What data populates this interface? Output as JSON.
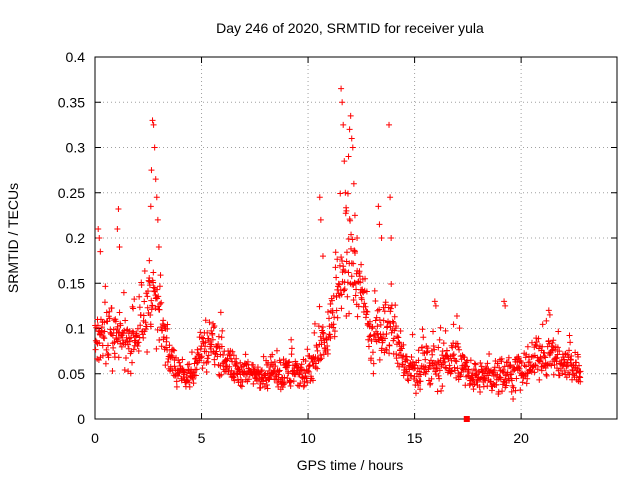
{
  "chart_data": {
    "type": "scatter",
    "title": "Day 246 of 2020, SRMTID for receiver yula",
    "xlabel": "GPS time / hours",
    "ylabel": "SRMTID / TECUs",
    "xlim": [
      0,
      24.5
    ],
    "ylim": [
      0,
      0.4
    ],
    "xticks": [
      0,
      5,
      10,
      15,
      20
    ],
    "yticks": [
      0,
      0.05,
      0.1,
      0.15,
      0.2,
      0.25,
      0.3,
      0.35,
      0.4
    ],
    "xtick_labels": [
      "0",
      "5",
      "10",
      "15",
      "20"
    ],
    "ytick_labels": [
      "0",
      "0.05",
      "0.1",
      "0.15",
      "0.2",
      "0.25",
      "0.3",
      "0.35",
      "0.4"
    ],
    "grid": true,
    "marker": "+",
    "series_color": "#ff0000",
    "gap_marker": {
      "x": 17.45,
      "y": 0
    },
    "envelope": [
      {
        "x": 0.0,
        "mean": 0.08,
        "spread": 0.04
      },
      {
        "x": 0.5,
        "mean": 0.09,
        "spread": 0.05
      },
      {
        "x": 1.0,
        "mean": 0.085,
        "spread": 0.05
      },
      {
        "x": 1.5,
        "mean": 0.08,
        "spread": 0.045
      },
      {
        "x": 2.0,
        "mean": 0.095,
        "spread": 0.05
      },
      {
        "x": 2.5,
        "mean": 0.12,
        "spread": 0.06
      },
      {
        "x": 2.8,
        "mean": 0.14,
        "spread": 0.07
      },
      {
        "x": 3.2,
        "mean": 0.09,
        "spread": 0.05
      },
      {
        "x": 3.6,
        "mean": 0.06,
        "spread": 0.03
      },
      {
        "x": 4.0,
        "mean": 0.055,
        "spread": 0.025
      },
      {
        "x": 4.5,
        "mean": 0.045,
        "spread": 0.025
      },
      {
        "x": 5.0,
        "mean": 0.08,
        "spread": 0.04
      },
      {
        "x": 5.5,
        "mean": 0.085,
        "spread": 0.04
      },
      {
        "x": 6.0,
        "mean": 0.07,
        "spread": 0.035
      },
      {
        "x": 6.5,
        "mean": 0.055,
        "spread": 0.025
      },
      {
        "x": 7.0,
        "mean": 0.05,
        "spread": 0.025
      },
      {
        "x": 8.0,
        "mean": 0.05,
        "spread": 0.025
      },
      {
        "x": 9.0,
        "mean": 0.05,
        "spread": 0.03
      },
      {
        "x": 10.0,
        "mean": 0.05,
        "spread": 0.03
      },
      {
        "x": 10.5,
        "mean": 0.07,
        "spread": 0.04
      },
      {
        "x": 11.0,
        "mean": 0.1,
        "spread": 0.05
      },
      {
        "x": 11.5,
        "mean": 0.15,
        "spread": 0.06
      },
      {
        "x": 12.0,
        "mean": 0.17,
        "spread": 0.07
      },
      {
        "x": 12.5,
        "mean": 0.14,
        "spread": 0.05
      },
      {
        "x": 13.0,
        "mean": 0.08,
        "spread": 0.04
      },
      {
        "x": 13.5,
        "mean": 0.1,
        "spread": 0.05
      },
      {
        "x": 14.0,
        "mean": 0.1,
        "spread": 0.045
      },
      {
        "x": 14.5,
        "mean": 0.06,
        "spread": 0.03
      },
      {
        "x": 15.0,
        "mean": 0.05,
        "spread": 0.03
      },
      {
        "x": 16.0,
        "mean": 0.06,
        "spread": 0.035
      },
      {
        "x": 17.0,
        "mean": 0.065,
        "spread": 0.035
      },
      {
        "x": 17.45,
        "mean": 0.05,
        "spread": 0.02
      },
      {
        "x": 18.0,
        "mean": 0.045,
        "spread": 0.025
      },
      {
        "x": 19.0,
        "mean": 0.05,
        "spread": 0.03
      },
      {
        "x": 20.0,
        "mean": 0.05,
        "spread": 0.03
      },
      {
        "x": 20.8,
        "mean": 0.07,
        "spread": 0.035
      },
      {
        "x": 21.5,
        "mean": 0.07,
        "spread": 0.035
      },
      {
        "x": 22.8,
        "mean": 0.05,
        "spread": 0.025
      }
    ],
    "peaks": [
      {
        "x": 0.15,
        "y": 0.21
      },
      {
        "x": 0.2,
        "y": 0.2
      },
      {
        "x": 0.25,
        "y": 0.185
      },
      {
        "x": 1.05,
        "y": 0.21
      },
      {
        "x": 1.1,
        "y": 0.232
      },
      {
        "x": 1.15,
        "y": 0.19
      },
      {
        "x": 2.55,
        "y": 0.175
      },
      {
        "x": 2.62,
        "y": 0.235
      },
      {
        "x": 2.65,
        "y": 0.275
      },
      {
        "x": 2.7,
        "y": 0.33
      },
      {
        "x": 2.75,
        "y": 0.325
      },
      {
        "x": 2.8,
        "y": 0.3
      },
      {
        "x": 2.85,
        "y": 0.265
      },
      {
        "x": 2.9,
        "y": 0.245
      },
      {
        "x": 2.95,
        "y": 0.22
      },
      {
        "x": 3.0,
        "y": 0.19
      },
      {
        "x": 10.55,
        "y": 0.245
      },
      {
        "x": 10.6,
        "y": 0.22
      },
      {
        "x": 10.7,
        "y": 0.18
      },
      {
        "x": 11.55,
        "y": 0.365
      },
      {
        "x": 11.6,
        "y": 0.35
      },
      {
        "x": 11.65,
        "y": 0.325
      },
      {
        "x": 11.7,
        "y": 0.285
      },
      {
        "x": 11.75,
        "y": 0.25
      },
      {
        "x": 11.8,
        "y": 0.23
      },
      {
        "x": 11.9,
        "y": 0.29
      },
      {
        "x": 11.95,
        "y": 0.32
      },
      {
        "x": 12.0,
        "y": 0.335
      },
      {
        "x": 12.05,
        "y": 0.31
      },
      {
        "x": 12.1,
        "y": 0.3
      },
      {
        "x": 12.15,
        "y": 0.26
      },
      {
        "x": 12.2,
        "y": 0.225
      },
      {
        "x": 12.3,
        "y": 0.2
      },
      {
        "x": 13.3,
        "y": 0.235
      },
      {
        "x": 13.35,
        "y": 0.215
      },
      {
        "x": 13.45,
        "y": 0.2
      },
      {
        "x": 13.8,
        "y": 0.325
      },
      {
        "x": 13.85,
        "y": 0.245
      },
      {
        "x": 13.9,
        "y": 0.2
      },
      {
        "x": 15.95,
        "y": 0.13
      },
      {
        "x": 16.0,
        "y": 0.125
      },
      {
        "x": 19.2,
        "y": 0.13
      },
      {
        "x": 19.25,
        "y": 0.125
      },
      {
        "x": 21.3,
        "y": 0.12
      },
      {
        "x": 21.35,
        "y": 0.115
      }
    ],
    "points_per_hour": 60,
    "x_max_data": 22.8
  }
}
